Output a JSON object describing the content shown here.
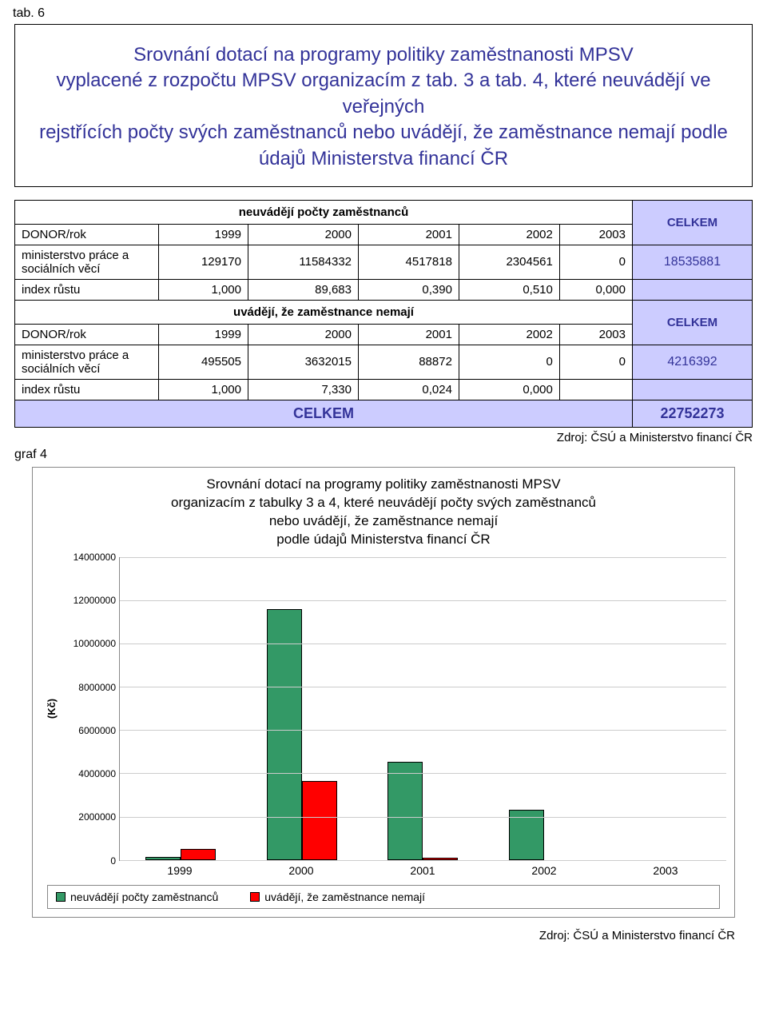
{
  "page_label": "tab. 6",
  "title_box": {
    "line1": "Srovnání dotací na programy politiky zaměstnanosti MPSV",
    "line2": "vyplacené z rozpočtu MPSV organizacím z tab. 3 a tab.",
    "line3": "4, které neuvádějí ve veřejných",
    "line4": "rejstřících počty svých zaměstnanců nebo uvádějí, že zaměstnance nemají podle",
    "line5": "údajů Ministerstva financí ČR"
  },
  "table": {
    "subhead1": "neuvádějí počty zaměstnanců",
    "celkem_head": "CELKEM",
    "donor_label": "DONOR/rok",
    "years": [
      "1999",
      "2000",
      "2001",
      "2002",
      "2003"
    ],
    "row1_label": "ministerstvo práce a sociálních věcí",
    "row1_vals": [
      "129170",
      "11584332",
      "4517818",
      "2304561",
      "0"
    ],
    "row1_total": "18535881",
    "row2_label": "index růstu",
    "row2_vals": [
      "1,000",
      "89,683",
      "0,390",
      "0,510",
      "0,000"
    ],
    "subhead2": "uvádějí, že zaměstnance nemají",
    "row3_label": "ministerstvo práce a sociálních věcí",
    "row3_vals": [
      "495505",
      "3632015",
      "88872",
      "0",
      "0"
    ],
    "row3_total": "4216392",
    "row4_label": "index růstu",
    "row4_vals": [
      "1,000",
      "7,330",
      "0,024",
      "0,000"
    ],
    "sum_label": "CELKEM",
    "sum_total": "22752273"
  },
  "source": "Zdroj: ČSÚ a Ministerstvo financí ČR",
  "graf_label": "graf 4",
  "chart": {
    "title_l1": "Srovnání dotací na programy politiky zaměstnanosti MPSV",
    "title_l2": "organizacím z tabulky 3 a 4, které neuvádějí počty svých zaměstnanců",
    "title_l3": "nebo uvádějí, že zaměstnance nemají",
    "title_l4": "podle údajů Ministerstva financí ČR",
    "y_label": "(Kč)",
    "y_max": 14000000,
    "y_ticks": [
      "0",
      "2000000",
      "4000000",
      "6000000",
      "8000000",
      "10000000",
      "12000000",
      "14000000"
    ],
    "categories": [
      "1999",
      "2000",
      "2001",
      "2002",
      "2003"
    ],
    "series": [
      {
        "name": "neuvádějí počty zaměstnanců",
        "color": "#339966",
        "values": [
          129170,
          11584332,
          4517818,
          2304561,
          0
        ]
      },
      {
        "name": "uvádějí, že zaměstnance nemají",
        "color": "#ff0000",
        "values": [
          495505,
          3632015,
          88872,
          0,
          0
        ]
      }
    ],
    "grid_color": "#cccccc",
    "bg": "#ffffff"
  }
}
